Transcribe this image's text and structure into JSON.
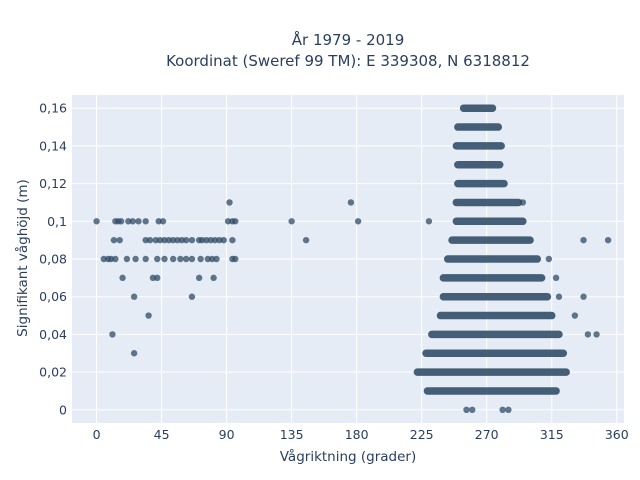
{
  "chart_data": {
    "type": "scatter",
    "title_line1": "År 1979 - 2019",
    "title_line2": "Koordinat (Sweref 99 TM): E 339308, N 6318812",
    "xlabel": "Vågriktning (grader)",
    "ylabel": "Signifikant våghöjd (m)",
    "xlim": [
      -17,
      365
    ],
    "ylim": [
      -0.007,
      0.167
    ],
    "x_ticks": [
      0,
      45,
      90,
      135,
      180,
      225,
      270,
      315,
      360
    ],
    "x_tick_labels": [
      "0",
      "45",
      "90",
      "135",
      "180",
      "225",
      "270",
      "315",
      "360"
    ],
    "y_ticks": [
      0,
      0.02,
      0.04,
      0.06,
      0.08,
      0.1,
      0.12,
      0.14,
      0.16
    ],
    "y_tick_labels": [
      "0",
      "0,02",
      "0,04",
      "0,06",
      "0,08",
      "0,1",
      "0,12",
      "0,14",
      "0,16"
    ],
    "grid": true,
    "background_color": "#e5ecf6",
    "marker_color": "#2f4b66",
    "bands": [
      {
        "y": 0.16,
        "x_min": 254,
        "x_max": 274
      },
      {
        "y": 0.15,
        "x_min": 250,
        "x_max": 278
      },
      {
        "y": 0.14,
        "x_min": 249,
        "x_max": 280
      },
      {
        "y": 0.13,
        "x_min": 250,
        "x_max": 279
      },
      {
        "y": 0.12,
        "x_min": 250,
        "x_max": 282
      },
      {
        "y": 0.11,
        "x_min": 249,
        "x_max": 292
      },
      {
        "y": 0.1,
        "x_min": 249,
        "x_max": 295
      },
      {
        "y": 0.09,
        "x_min": 246,
        "x_max": 300
      },
      {
        "y": 0.08,
        "x_min": 243,
        "x_max": 305
      },
      {
        "y": 0.07,
        "x_min": 240,
        "x_max": 308
      },
      {
        "y": 0.06,
        "x_min": 240,
        "x_max": 312
      },
      {
        "y": 0.05,
        "x_min": 238,
        "x_max": 315
      },
      {
        "y": 0.04,
        "x_min": 232,
        "x_max": 320
      },
      {
        "y": 0.03,
        "x_min": 228,
        "x_max": 323
      },
      {
        "y": 0.02,
        "x_min": 222,
        "x_max": 325
      },
      {
        "y": 0.01,
        "x_min": 229,
        "x_max": 318
      }
    ],
    "points": [
      {
        "x": 256,
        "y": 0.0
      },
      {
        "x": 260,
        "y": 0.0
      },
      {
        "x": 281,
        "y": 0.0
      },
      {
        "x": 285,
        "y": 0.0
      },
      {
        "x": 0,
        "y": 0.1
      },
      {
        "x": 13,
        "y": 0.1
      },
      {
        "x": 15,
        "y": 0.1
      },
      {
        "x": 17,
        "y": 0.1
      },
      {
        "x": 22,
        "y": 0.1
      },
      {
        "x": 25,
        "y": 0.1
      },
      {
        "x": 29,
        "y": 0.1
      },
      {
        "x": 34,
        "y": 0.1
      },
      {
        "x": 43,
        "y": 0.1
      },
      {
        "x": 46,
        "y": 0.1
      },
      {
        "x": 91,
        "y": 0.1
      },
      {
        "x": 94,
        "y": 0.1
      },
      {
        "x": 96,
        "y": 0.1
      },
      {
        "x": 135,
        "y": 0.1
      },
      {
        "x": 181,
        "y": 0.1
      },
      {
        "x": 230,
        "y": 0.1
      },
      {
        "x": 92,
        "y": 0.11
      },
      {
        "x": 176,
        "y": 0.11
      },
      {
        "x": 295,
        "y": 0.11
      },
      {
        "x": 12,
        "y": 0.09
      },
      {
        "x": 16,
        "y": 0.09
      },
      {
        "x": 34,
        "y": 0.09
      },
      {
        "x": 37,
        "y": 0.09
      },
      {
        "x": 41,
        "y": 0.09
      },
      {
        "x": 44,
        "y": 0.09
      },
      {
        "x": 47,
        "y": 0.09
      },
      {
        "x": 50,
        "y": 0.09
      },
      {
        "x": 53,
        "y": 0.09
      },
      {
        "x": 56,
        "y": 0.09
      },
      {
        "x": 59,
        "y": 0.09
      },
      {
        "x": 62,
        "y": 0.09
      },
      {
        "x": 66,
        "y": 0.09
      },
      {
        "x": 71,
        "y": 0.09
      },
      {
        "x": 73,
        "y": 0.09
      },
      {
        "x": 76,
        "y": 0.09
      },
      {
        "x": 79,
        "y": 0.09
      },
      {
        "x": 82,
        "y": 0.09
      },
      {
        "x": 85,
        "y": 0.09
      },
      {
        "x": 88,
        "y": 0.09
      },
      {
        "x": 94,
        "y": 0.09
      },
      {
        "x": 145,
        "y": 0.09
      },
      {
        "x": 337,
        "y": 0.09
      },
      {
        "x": 354,
        "y": 0.09
      },
      {
        "x": 5,
        "y": 0.08
      },
      {
        "x": 8,
        "y": 0.08
      },
      {
        "x": 10,
        "y": 0.08
      },
      {
        "x": 13,
        "y": 0.08
      },
      {
        "x": 21,
        "y": 0.08
      },
      {
        "x": 27,
        "y": 0.08
      },
      {
        "x": 34,
        "y": 0.08
      },
      {
        "x": 42,
        "y": 0.08
      },
      {
        "x": 47,
        "y": 0.08
      },
      {
        "x": 53,
        "y": 0.08
      },
      {
        "x": 58,
        "y": 0.08
      },
      {
        "x": 62,
        "y": 0.08
      },
      {
        "x": 66,
        "y": 0.08
      },
      {
        "x": 72,
        "y": 0.08
      },
      {
        "x": 77,
        "y": 0.08
      },
      {
        "x": 80,
        "y": 0.08
      },
      {
        "x": 83,
        "y": 0.08
      },
      {
        "x": 94,
        "y": 0.08
      },
      {
        "x": 96,
        "y": 0.08
      },
      {
        "x": 313,
        "y": 0.08
      },
      {
        "x": 18,
        "y": 0.07
      },
      {
        "x": 39,
        "y": 0.07
      },
      {
        "x": 42,
        "y": 0.07
      },
      {
        "x": 71,
        "y": 0.07
      },
      {
        "x": 81,
        "y": 0.07
      },
      {
        "x": 318,
        "y": 0.07
      },
      {
        "x": 26,
        "y": 0.06
      },
      {
        "x": 66,
        "y": 0.06
      },
      {
        "x": 320,
        "y": 0.06
      },
      {
        "x": 337,
        "y": 0.06
      },
      {
        "x": 36,
        "y": 0.05
      },
      {
        "x": 331,
        "y": 0.05
      },
      {
        "x": 11,
        "y": 0.04
      },
      {
        "x": 340,
        "y": 0.04
      },
      {
        "x": 346,
        "y": 0.04
      },
      {
        "x": 26,
        "y": 0.03
      }
    ]
  }
}
